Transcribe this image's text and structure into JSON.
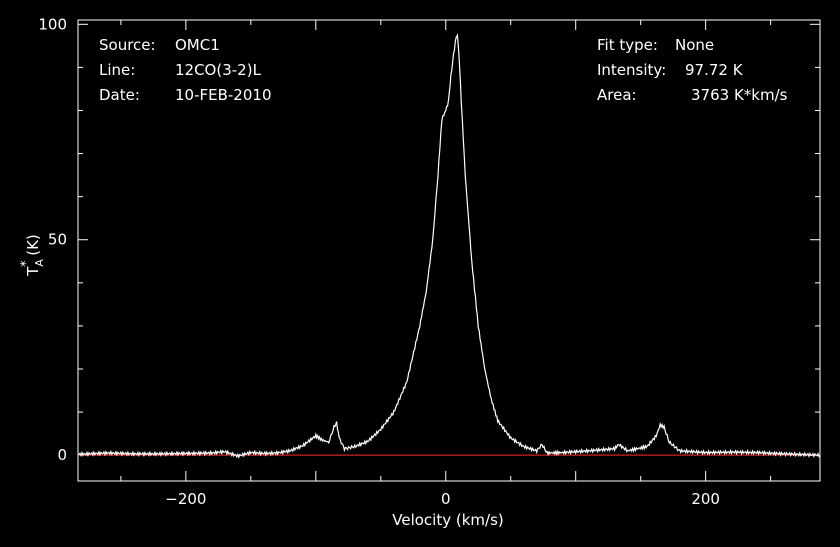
{
  "chart_data": {
    "type": "line",
    "info_left": {
      "source_label": "Source:",
      "source_value": "OMC1",
      "line_label": "Line:",
      "line_value": "12CO(3-2)L",
      "date_label": "Date:",
      "date_value": "10-FEB-2010"
    },
    "info_right": {
      "fit_label": "Fit type:",
      "fit_value": "None",
      "intensity_label": "Intensity:",
      "intensity_value": "97.72 K",
      "area_label": "Area:",
      "area_value": "3763 K*km/s"
    },
    "xlabel": "Velocity (km/s)",
    "ylabel": "T*A (K)",
    "xlim": [
      -283,
      288
    ],
    "ylim": [
      -6,
      101
    ],
    "x_ticks": [
      -200,
      0,
      200
    ],
    "x_tick_labels": [
      "−200",
      "0",
      "200"
    ],
    "y_ticks": [
      0,
      50,
      100
    ],
    "y_tick_labels": [
      "0",
      "50",
      "100"
    ],
    "series": [
      {
        "color": "#ffffff",
        "x": [
          -283,
          -260,
          -240,
          -220,
          -200,
          -180,
          -170,
          -160,
          -150,
          -140,
          -130,
          -120,
          -110,
          -100,
          -95,
          -90,
          -86,
          -84,
          -82,
          -78,
          -70,
          -60,
          -50,
          -40,
          -30,
          -20,
          -15,
          -10,
          -6,
          -3,
          0,
          2,
          4,
          6,
          8,
          9,
          10,
          12,
          15,
          20,
          25,
          30,
          35,
          40,
          50,
          60,
          70,
          74,
          78,
          90,
          110,
          130,
          133,
          140,
          155,
          162,
          165,
          168,
          172,
          180,
          200,
          220,
          240,
          260,
          288
        ],
        "y": [
          0.2,
          0.5,
          0.3,
          0.3,
          0.4,
          0.5,
          0.8,
          -0.2,
          0.6,
          0.4,
          0.5,
          1.0,
          2.2,
          4.5,
          3.5,
          3.0,
          6.5,
          7.5,
          4.0,
          1.5,
          2.0,
          3.2,
          6.0,
          10.0,
          17.0,
          30.0,
          38.0,
          50.0,
          65.0,
          78.0,
          80.0,
          82.0,
          88.0,
          93.0,
          97.0,
          97.7,
          94.0,
          82.0,
          65.0,
          45.0,
          30.0,
          20.0,
          13.0,
          8.0,
          4.0,
          2.0,
          1.0,
          2.5,
          0.5,
          0.6,
          1.0,
          1.5,
          2.5,
          1.0,
          2.0,
          4.5,
          7.0,
          6.5,
          3.0,
          1.0,
          0.6,
          0.7,
          0.6,
          0.3,
          0.0
        ]
      },
      {
        "color": "#cc2222",
        "x": [
          -283,
          288
        ],
        "y": [
          0,
          0
        ]
      }
    ]
  }
}
